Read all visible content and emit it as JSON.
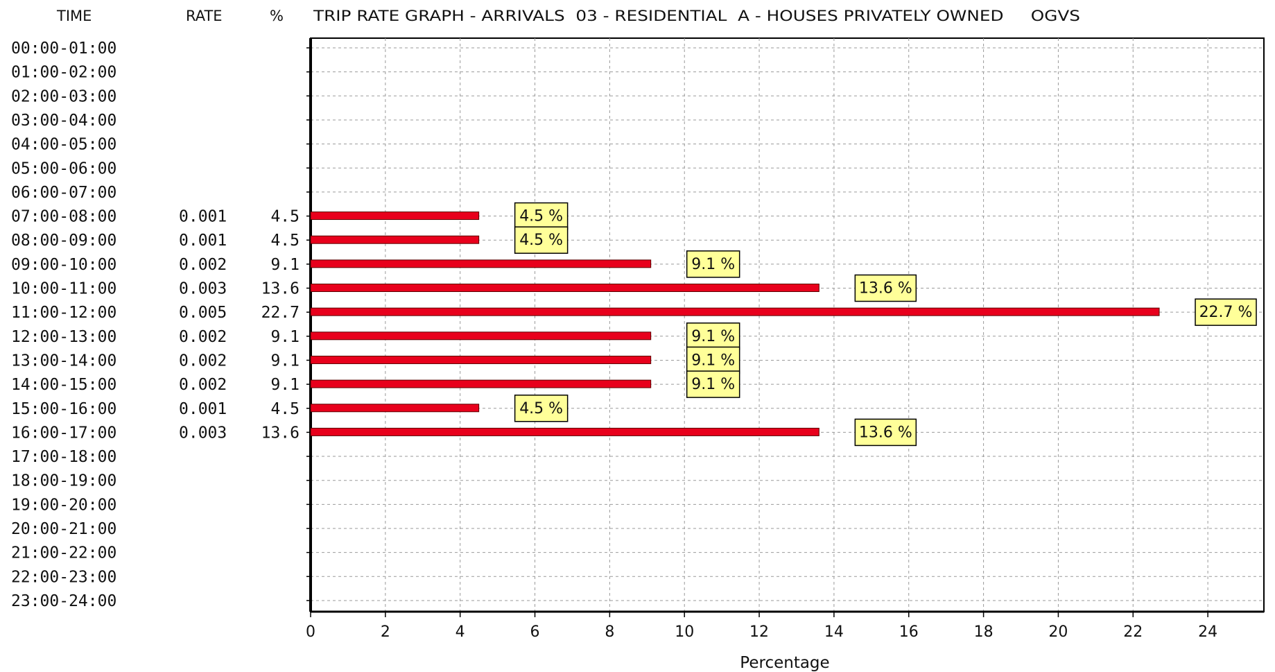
{
  "header": {
    "time": "TIME",
    "rate": "RATE",
    "percent": "%",
    "title": "TRIP RATE GRAPH - ARRIVALS  03 - RESIDENTIAL  A - HOUSES PRIVATELY OWNED     OGVS"
  },
  "chart_data": {
    "type": "bar",
    "orientation": "horizontal",
    "title": "TRIP RATE GRAPH - ARRIVALS  03 - RESIDENTIAL  A - HOUSES PRIVATELY OWNED     OGVS",
    "xlabel": "Percentage",
    "ylabel": "",
    "xlim": [
      0,
      25.5
    ],
    "xticks": [
      0,
      2,
      4,
      6,
      8,
      10,
      12,
      14,
      16,
      18,
      20,
      22,
      24
    ],
    "grid": true,
    "bar_color": "#e8001c",
    "label_box_color": "#ffff99",
    "categories": [
      "00:00-01:00",
      "01:00-02:00",
      "02:00-03:00",
      "03:00-04:00",
      "04:00-05:00",
      "05:00-06:00",
      "06:00-07:00",
      "07:00-08:00",
      "08:00-09:00",
      "09:00-10:00",
      "10:00-11:00",
      "11:00-12:00",
      "12:00-13:00",
      "13:00-14:00",
      "14:00-15:00",
      "15:00-16:00",
      "16:00-17:00",
      "17:00-18:00",
      "18:00-19:00",
      "19:00-20:00",
      "20:00-21:00",
      "21:00-22:00",
      "22:00-23:00",
      "23:00-24:00"
    ],
    "rate": [
      "",
      "",
      "",
      "",
      "",
      "",
      "",
      "0.001",
      "0.001",
      "0.002",
      "0.003",
      "0.005",
      "0.002",
      "0.002",
      "0.002",
      "0.001",
      "0.003",
      "",
      "",
      "",
      "",
      "",
      "",
      ""
    ],
    "percent_text": [
      "",
      "",
      "",
      "",
      "",
      "",
      "",
      "4.5",
      "4.5",
      "9.1",
      "13.6",
      "22.7",
      "9.1",
      "9.1",
      "9.1",
      "4.5",
      "13.6",
      "",
      "",
      "",
      "",
      "",
      "",
      ""
    ],
    "values": [
      null,
      null,
      null,
      null,
      null,
      null,
      null,
      4.5,
      4.5,
      9.1,
      13.6,
      22.7,
      9.1,
      9.1,
      9.1,
      4.5,
      13.6,
      null,
      null,
      null,
      null,
      null,
      null,
      null
    ],
    "data_labels": [
      "",
      "",
      "",
      "",
      "",
      "",
      "",
      "4.5 %",
      "4.5 %",
      "9.1 %",
      "13.6 %",
      "22.7 %",
      "9.1 %",
      "9.1 %",
      "9.1 %",
      "4.5 %",
      "13.6 %",
      "",
      "",
      "",
      "",
      "",
      "",
      ""
    ]
  }
}
